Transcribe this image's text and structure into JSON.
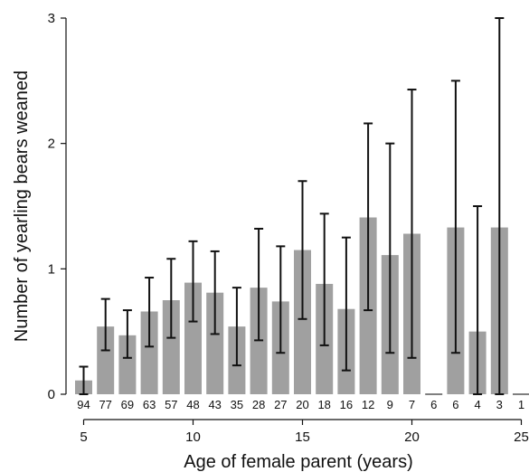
{
  "chart_data": {
    "type": "bar",
    "xlabel": "Age of female parent (years)",
    "ylabel": "Number of yearling bears weaned",
    "xlim": [
      5,
      25
    ],
    "ylim": [
      0,
      3
    ],
    "x_ticks": [
      5,
      10,
      15,
      20,
      25
    ],
    "y_ticks": [
      0,
      1,
      2,
      3
    ],
    "bar_color": "#a0a0a0",
    "ages": [
      5,
      6,
      7,
      8,
      9,
      10,
      11,
      12,
      13,
      14,
      15,
      16,
      17,
      18,
      19,
      20,
      21,
      22,
      23,
      24,
      25
    ],
    "values": [
      0.11,
      0.54,
      0.47,
      0.66,
      0.75,
      0.89,
      0.81,
      0.54,
      0.85,
      0.74,
      1.15,
      0.88,
      0.68,
      1.41,
      1.11,
      1.28,
      0,
      1.33,
      0.5,
      1.33,
      0
    ],
    "error_low": [
      0.0,
      0.35,
      0.29,
      0.38,
      0.45,
      0.58,
      0.48,
      0.23,
      0.43,
      0.33,
      0.6,
      0.39,
      0.19,
      0.67,
      0.33,
      0.29,
      null,
      0.33,
      0.0,
      0.0,
      null
    ],
    "error_high": [
      0.22,
      0.76,
      0.67,
      0.93,
      1.08,
      1.22,
      1.14,
      0.85,
      1.32,
      1.18,
      1.7,
      1.44,
      1.25,
      2.16,
      2.0,
      2.43,
      null,
      2.5,
      1.5,
      3.0,
      null
    ],
    "sample_sizes": [
      "94",
      "77",
      "69",
      "63",
      "57",
      "48",
      "43",
      "35",
      "28",
      "27",
      "20",
      "18",
      "16",
      "12",
      "9",
      "7",
      "6",
      "6",
      "4",
      "3",
      "1"
    ]
  }
}
